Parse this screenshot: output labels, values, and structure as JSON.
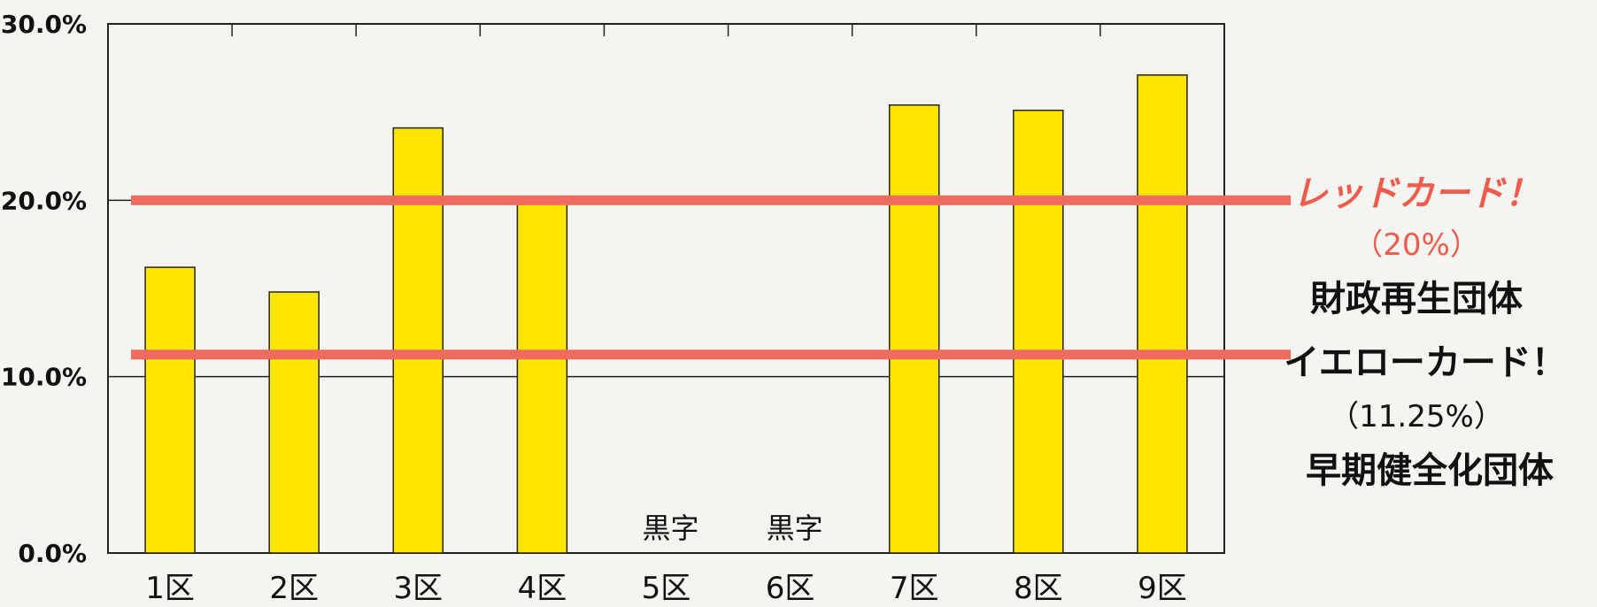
{
  "chart_data": {
    "type": "bar",
    "categories": [
      "1区",
      "2区",
      "3区",
      "4区",
      "5区",
      "6区",
      "7区",
      "8区",
      "9区"
    ],
    "values": [
      16.2,
      14.8,
      24.1,
      20.1,
      null,
      null,
      25.4,
      25.1,
      27.1
    ],
    "bar_notes": [
      "",
      "",
      "",
      "",
      "黒字",
      "黒字",
      "",
      "",
      ""
    ],
    "yticks": [
      "0.0%",
      "10.0%",
      "20.0%",
      "30.0%"
    ],
    "ylim": [
      0,
      30
    ],
    "grid": "horizontal",
    "bar_color": "#ffe500",
    "thresholds": [
      {
        "value": 20,
        "label": "レッドカード！",
        "percent_text": "（20%）",
        "category": "財政再生団体",
        "color": "#ef6b5e"
      },
      {
        "value": 11.25,
        "label": "イエローカード！",
        "percent_text": "（11.25%）",
        "category": "早期健全化団体",
        "color": "#ef6b5e"
      }
    ]
  }
}
